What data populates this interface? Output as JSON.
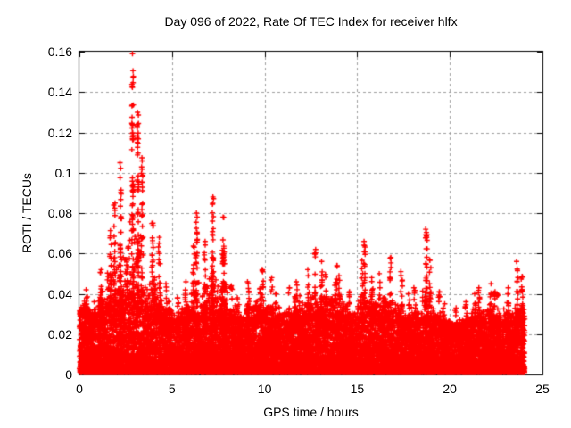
{
  "page": {
    "background": "#ffffff",
    "text_color": "#000000"
  },
  "chart_data": {
    "type": "scatter",
    "title": "Day 096 of 2022, Rate Of TEC Index for receiver hlfx",
    "xlabel": "GPS time / hours",
    "ylabel": "ROTI / TECUs",
    "xlim": [
      0,
      25
    ],
    "ylim": [
      0,
      0.16
    ],
    "xticks": [
      {
        "v": 0,
        "label": "0"
      },
      {
        "v": 5,
        "label": "5"
      },
      {
        "v": 10,
        "label": "10"
      },
      {
        "v": 15,
        "label": "15"
      },
      {
        "v": 20,
        "label": "20"
      },
      {
        "v": 25,
        "label": "25"
      }
    ],
    "yticks": [
      {
        "v": 0.0,
        "label": "0"
      },
      {
        "v": 0.02,
        "label": "0.02"
      },
      {
        "v": 0.04,
        "label": "0.04"
      },
      {
        "v": 0.06,
        "label": "0.06"
      },
      {
        "v": 0.08,
        "label": "0.08"
      },
      {
        "v": 0.1,
        "label": "0.1"
      },
      {
        "v": 0.12,
        "label": "0.12"
      },
      {
        "v": 0.14,
        "label": "0.14"
      },
      {
        "v": 0.16,
        "label": "0.16"
      }
    ],
    "grid": true,
    "grid_color": "#a0a0a0",
    "axis_color": "#000000",
    "legend": "none",
    "marker": {
      "shape": "plus",
      "color": "#ff0000",
      "size": 6,
      "stroke_width": 1.4
    },
    "series_name": "ROTI",
    "time_range_h": [
      0,
      24.05
    ],
    "peak": {
      "t": 2.84,
      "value": 0.158
    },
    "envelope_format": [
      "t_start_h",
      "t_end_h",
      "dense_band_top_TECU",
      "max_spike_TECU"
    ],
    "envelope_bins": [
      [
        0.0,
        0.5,
        0.03,
        0.042
      ],
      [
        0.5,
        1.0,
        0.028,
        0.036
      ],
      [
        1.0,
        1.5,
        0.03,
        0.052
      ],
      [
        1.5,
        2.0,
        0.032,
        0.085
      ],
      [
        2.0,
        2.5,
        0.035,
        0.105
      ],
      [
        2.5,
        3.0,
        0.038,
        0.159
      ],
      [
        3.0,
        3.5,
        0.036,
        0.13
      ],
      [
        3.5,
        4.0,
        0.032,
        0.075
      ],
      [
        4.0,
        4.5,
        0.03,
        0.068
      ],
      [
        4.5,
        5.0,
        0.026,
        0.045
      ],
      [
        5.0,
        5.5,
        0.025,
        0.038
      ],
      [
        5.5,
        6.0,
        0.027,
        0.046
      ],
      [
        6.0,
        6.5,
        0.028,
        0.08
      ],
      [
        6.5,
        7.0,
        0.028,
        0.066
      ],
      [
        7.0,
        7.5,
        0.03,
        0.088
      ],
      [
        7.5,
        8.0,
        0.03,
        0.078
      ],
      [
        8.0,
        8.5,
        0.026,
        0.044
      ],
      [
        8.5,
        9.0,
        0.024,
        0.038
      ],
      [
        9.0,
        9.5,
        0.026,
        0.046
      ],
      [
        9.5,
        10.0,
        0.028,
        0.052
      ],
      [
        10.0,
        10.5,
        0.026,
        0.048
      ],
      [
        10.5,
        11.0,
        0.024,
        0.04
      ],
      [
        11.0,
        11.5,
        0.025,
        0.043
      ],
      [
        11.5,
        12.0,
        0.027,
        0.046
      ],
      [
        12.0,
        12.5,
        0.028,
        0.052
      ],
      [
        12.5,
        13.0,
        0.028,
        0.062
      ],
      [
        13.0,
        13.5,
        0.029,
        0.056
      ],
      [
        13.5,
        14.0,
        0.029,
        0.054
      ],
      [
        14.0,
        14.5,
        0.027,
        0.049
      ],
      [
        14.5,
        15.0,
        0.025,
        0.041
      ],
      [
        15.0,
        15.5,
        0.028,
        0.066
      ],
      [
        15.5,
        16.0,
        0.03,
        0.048
      ],
      [
        16.0,
        16.5,
        0.027,
        0.05
      ],
      [
        16.5,
        17.0,
        0.027,
        0.058
      ],
      [
        17.0,
        17.5,
        0.026,
        0.051
      ],
      [
        17.5,
        18.0,
        0.024,
        0.04
      ],
      [
        18.0,
        18.5,
        0.024,
        0.043
      ],
      [
        18.5,
        19.0,
        0.027,
        0.072
      ],
      [
        19.0,
        19.5,
        0.025,
        0.041
      ],
      [
        19.5,
        20.0,
        0.023,
        0.035
      ],
      [
        20.0,
        20.5,
        0.022,
        0.033
      ],
      [
        20.5,
        21.0,
        0.023,
        0.036
      ],
      [
        21.0,
        21.5,
        0.024,
        0.04
      ],
      [
        21.5,
        22.0,
        0.025,
        0.043
      ],
      [
        22.0,
        22.5,
        0.026,
        0.045
      ],
      [
        22.5,
        23.0,
        0.024,
        0.04
      ],
      [
        23.0,
        23.5,
        0.025,
        0.043
      ],
      [
        23.5,
        24.05,
        0.027,
        0.056
      ]
    ],
    "render": {
      "seed": 96,
      "base_points_per_bin": 300,
      "mid_points_per_bin": 40,
      "streaks_per_bin": 3,
      "min_value": 0.001
    }
  }
}
